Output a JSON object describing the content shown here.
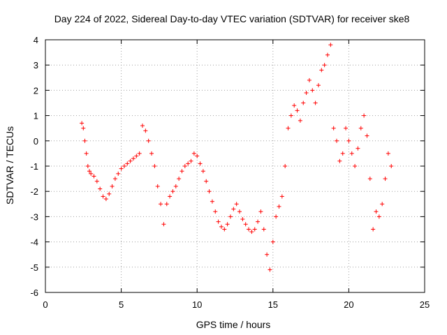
{
  "chart_data": {
    "type": "scatter",
    "title": "Day 224 of 2022, Sidereal Day-to-day VTEC variation (SDTVAR) for receiver ske8",
    "xlabel": "GPS time / hours",
    "ylabel": "SDTVAR / TECUs",
    "xlim": [
      0,
      25
    ],
    "ylim": [
      -6,
      4
    ],
    "xticks": [
      0,
      5,
      10,
      15,
      20,
      25
    ],
    "yticks": [
      -6,
      -5,
      -4,
      -3,
      -2,
      -1,
      0,
      1,
      2,
      3,
      4
    ],
    "grid": true,
    "marker": "+",
    "color": "#ff0000",
    "series": [
      {
        "name": "SDTVAR",
        "x": [
          2.4,
          2.5,
          2.6,
          2.7,
          2.8,
          2.9,
          3.0,
          3.2,
          3.4,
          3.6,
          3.8,
          4.0,
          4.2,
          4.4,
          4.6,
          4.8,
          5.0,
          5.2,
          5.4,
          5.6,
          5.8,
          6.0,
          6.2,
          6.4,
          6.6,
          6.8,
          7.0,
          7.2,
          7.4,
          7.6,
          7.8,
          8.0,
          8.2,
          8.4,
          8.6,
          8.8,
          9.0,
          9.2,
          9.4,
          9.6,
          9.8,
          10.0,
          10.2,
          10.4,
          10.6,
          10.8,
          11.0,
          11.2,
          11.4,
          11.6,
          11.8,
          12.0,
          12.2,
          12.4,
          12.6,
          12.8,
          13.0,
          13.2,
          13.4,
          13.6,
          13.8,
          14.0,
          14.2,
          14.4,
          14.6,
          14.8,
          15.0,
          15.2,
          15.4,
          15.6,
          15.8,
          16.0,
          16.2,
          16.4,
          16.6,
          16.8,
          17.0,
          17.2,
          17.4,
          17.6,
          17.8,
          18.0,
          18.2,
          18.4,
          18.6,
          18.8,
          19.0,
          19.2,
          19.4,
          19.6,
          19.8,
          20.0,
          20.2,
          20.4,
          20.6,
          20.8,
          21.0,
          21.2,
          21.4,
          21.6,
          21.8,
          22.0,
          22.2,
          22.4,
          22.6,
          22.8
        ],
        "y": [
          0.7,
          0.5,
          0.0,
          -0.5,
          -1.0,
          -1.2,
          -1.3,
          -1.4,
          -1.6,
          -1.9,
          -2.2,
          -2.3,
          -2.1,
          -1.8,
          -1.5,
          -1.3,
          -1.1,
          -1.0,
          -0.9,
          -0.8,
          -0.7,
          -0.6,
          -0.5,
          0.6,
          0.4,
          0.0,
          -0.5,
          -1.0,
          -1.8,
          -2.5,
          -3.3,
          -2.5,
          -2.2,
          -2.0,
          -1.8,
          -1.5,
          -1.2,
          -1.0,
          -0.9,
          -0.8,
          -0.5,
          -0.6,
          -0.9,
          -1.2,
          -1.6,
          -2.0,
          -2.4,
          -2.8,
          -3.2,
          -3.4,
          -3.5,
          -3.3,
          -3.0,
          -2.7,
          -2.5,
          -2.8,
          -3.1,
          -3.3,
          -3.5,
          -3.6,
          -3.5,
          -3.2,
          -2.8,
          -3.5,
          -4.5,
          -5.1,
          -4.0,
          -3.0,
          -2.6,
          -2.2,
          -1.0,
          0.5,
          1.0,
          1.4,
          1.2,
          0.8,
          1.5,
          1.9,
          2.4,
          2.0,
          1.5,
          2.2,
          2.8,
          3.0,
          3.4,
          3.8,
          0.5,
          0.0,
          -0.8,
          -0.5,
          0.5,
          0.0,
          -0.5,
          -1.0,
          -0.3,
          0.5,
          1.0,
          0.2,
          -1.5,
          -3.5,
          -2.8,
          -3.0,
          -2.5,
          -1.5,
          -0.5,
          -1.0
        ]
      }
    ]
  }
}
